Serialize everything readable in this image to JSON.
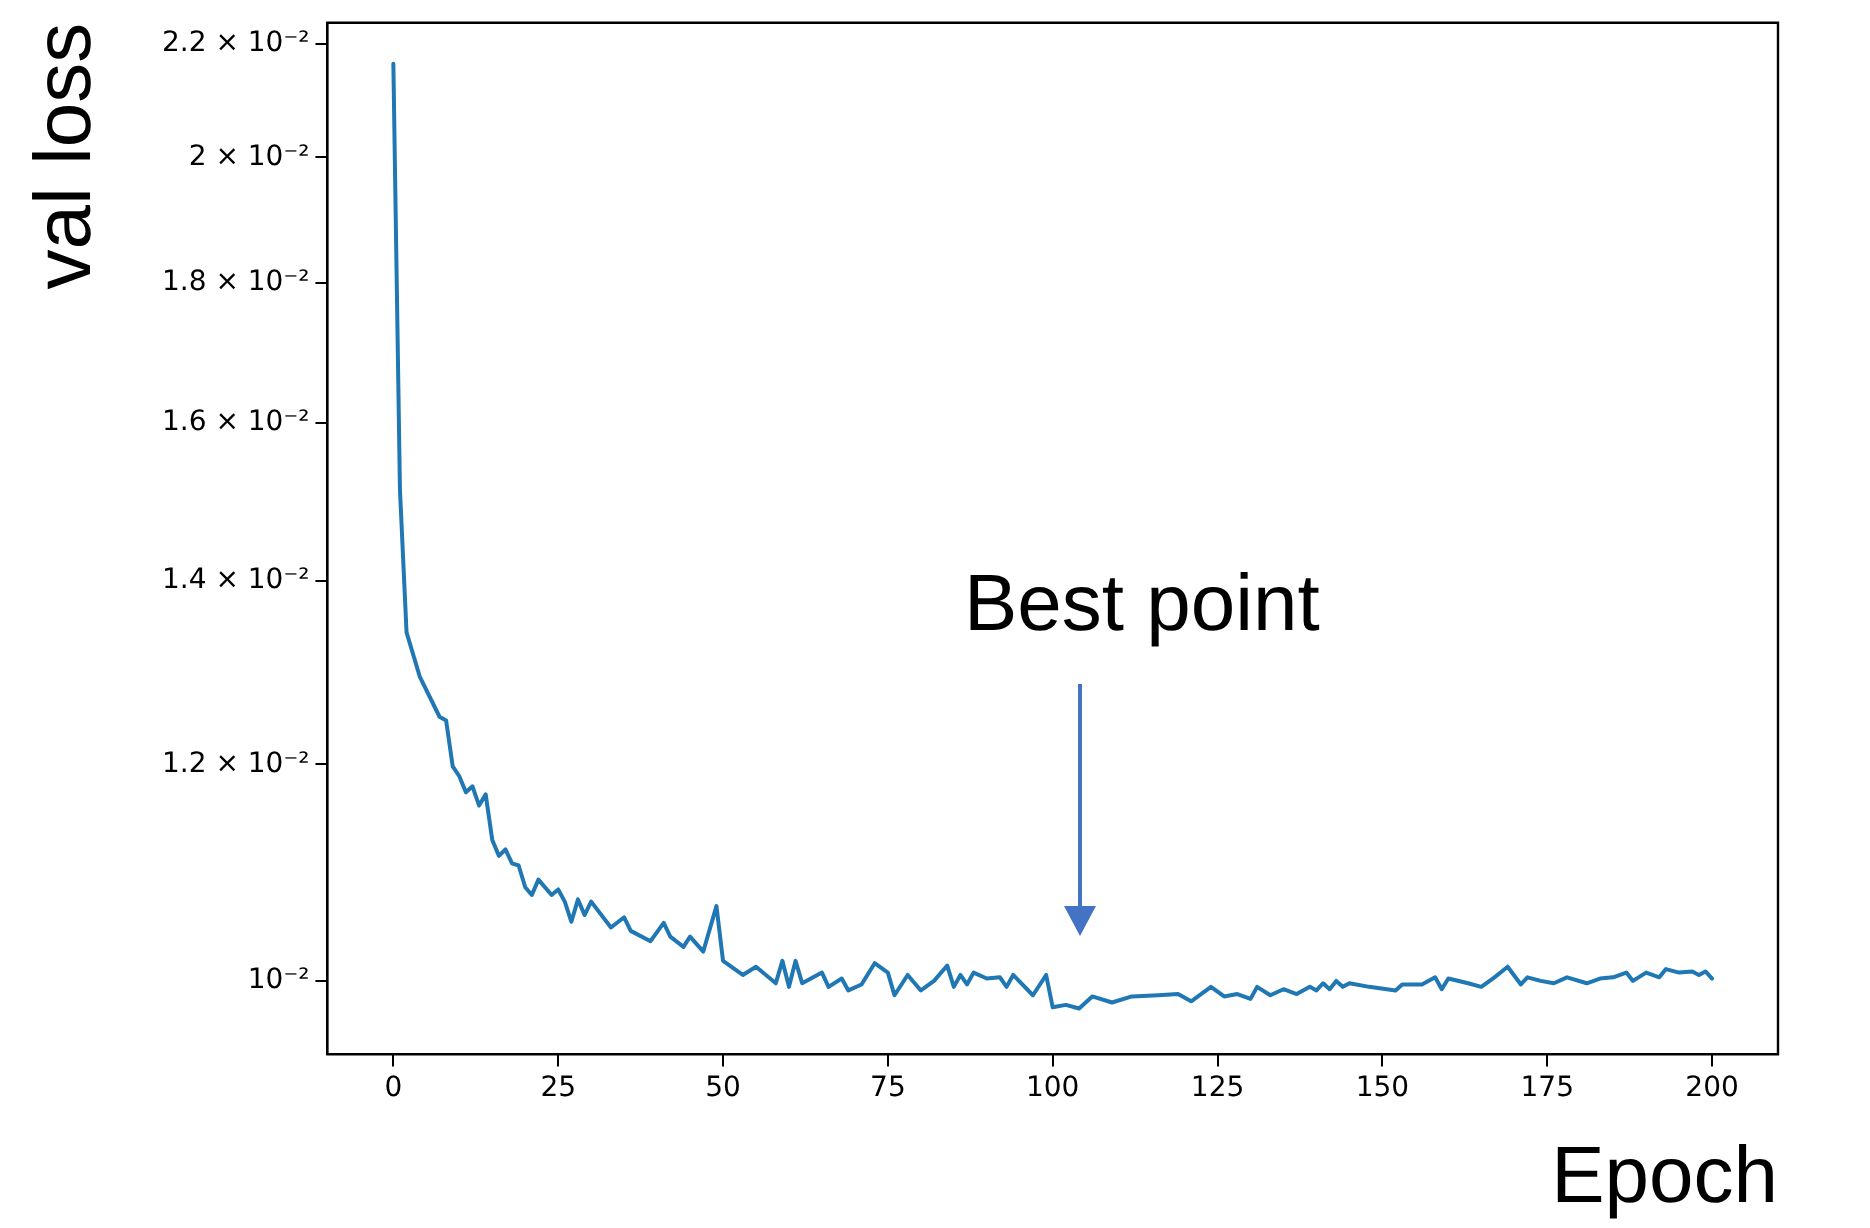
{
  "chart_data": {
    "type": "line",
    "xlabel": "Epoch",
    "ylabel": "val loss",
    "log": "y",
    "grid": false,
    "legend": false,
    "marker": "none",
    "line_style": "solid",
    "xlim": [
      -10,
      210
    ],
    "xticks": [
      0,
      25,
      50,
      75,
      100,
      125,
      150,
      175,
      200
    ],
    "ylim": [
      0.0094,
      0.0224
    ],
    "yticks": [
      {
        "value": 0.01,
        "label": "10⁻²"
      },
      {
        "value": 0.012,
        "label": "1.2 × 10⁻²"
      },
      {
        "value": 0.014,
        "label": "1.4 × 10⁻²"
      },
      {
        "value": 0.016,
        "label": "1.6 × 10⁻²"
      },
      {
        "value": 0.018,
        "label": "1.8 × 10⁻²"
      },
      {
        "value": 0.02,
        "label": "2 × 10⁻²"
      },
      {
        "value": 0.022,
        "label": "2.2 × 10⁻²"
      }
    ],
    "annotations": [
      "Best point"
    ],
    "series": [
      {
        "color": "#1f77b4",
        "x": [
          0,
          1,
          2,
          4,
          7,
          8,
          9,
          10,
          11,
          12,
          13,
          14,
          15,
          16,
          17,
          18,
          19,
          20,
          21,
          22,
          24,
          25,
          26,
          27,
          28,
          29,
          30,
          33,
          35,
          36,
          39,
          41,
          42,
          44,
          45,
          47,
          49,
          50,
          53,
          55,
          58,
          59,
          60,
          61,
          62,
          65,
          66,
          68,
          69,
          71,
          73,
          75,
          76,
          78,
          80,
          82,
          84,
          85,
          86,
          87,
          88,
          90,
          92,
          93,
          94,
          97,
          99,
          100,
          102,
          104,
          106,
          109,
          112,
          116,
          119,
          121,
          124,
          126,
          128,
          130,
          131,
          133,
          135,
          137,
          139,
          140,
          141,
          142,
          143,
          144,
          145,
          148,
          152,
          153,
          156,
          158,
          159,
          160,
          163,
          165,
          167,
          169,
          171,
          172,
          174,
          176,
          178,
          181,
          183,
          185,
          187,
          188,
          190,
          192,
          193,
          195,
          197,
          198,
          199,
          200
        ],
        "values": [
          0.02164,
          0.01512,
          0.01341,
          0.01292,
          0.01249,
          0.01245,
          0.01198,
          0.01188,
          0.01172,
          0.01178,
          0.01159,
          0.0117,
          0.01126,
          0.01111,
          0.01117,
          0.01104,
          0.01102,
          0.01082,
          0.01075,
          0.01089,
          0.01075,
          0.0108,
          0.01069,
          0.01051,
          0.01071,
          0.01057,
          0.01069,
          0.01046,
          0.01055,
          0.01043,
          0.01034,
          0.0105,
          0.01038,
          0.01029,
          0.01038,
          0.01025,
          0.01065,
          0.01017,
          0.01005,
          0.01012,
          0.00998,
          0.01017,
          0.00995,
          0.01017,
          0.00998,
          0.01007,
          0.00995,
          0.01002,
          0.00992,
          0.00997,
          0.01015,
          0.01007,
          0.00988,
          0.01005,
          0.00992,
          0.01,
          0.01013,
          0.00995,
          0.01005,
          0.00997,
          0.01007,
          0.01002,
          0.01003,
          0.00995,
          0.01005,
          0.00988,
          0.01005,
          0.00978,
          0.0098,
          0.00977,
          0.00987,
          0.00982,
          0.00987,
          0.00988,
          0.00989,
          0.00983,
          0.00995,
          0.00987,
          0.00989,
          0.00985,
          0.00995,
          0.00988,
          0.00993,
          0.00989,
          0.00995,
          0.00992,
          0.00998,
          0.00993,
          0.01,
          0.00995,
          0.00998,
          0.00995,
          0.00992,
          0.00997,
          0.00997,
          0.01003,
          0.00993,
          0.01002,
          0.00998,
          0.00995,
          0.01003,
          0.01012,
          0.00997,
          0.01003,
          0.01,
          0.00998,
          0.01003,
          0.00998,
          0.01002,
          0.01003,
          0.01007,
          0.01,
          0.01007,
          0.01003,
          0.0101,
          0.01007,
          0.01008,
          0.01005,
          0.01008,
          0.01002
        ]
      }
    ]
  }
}
